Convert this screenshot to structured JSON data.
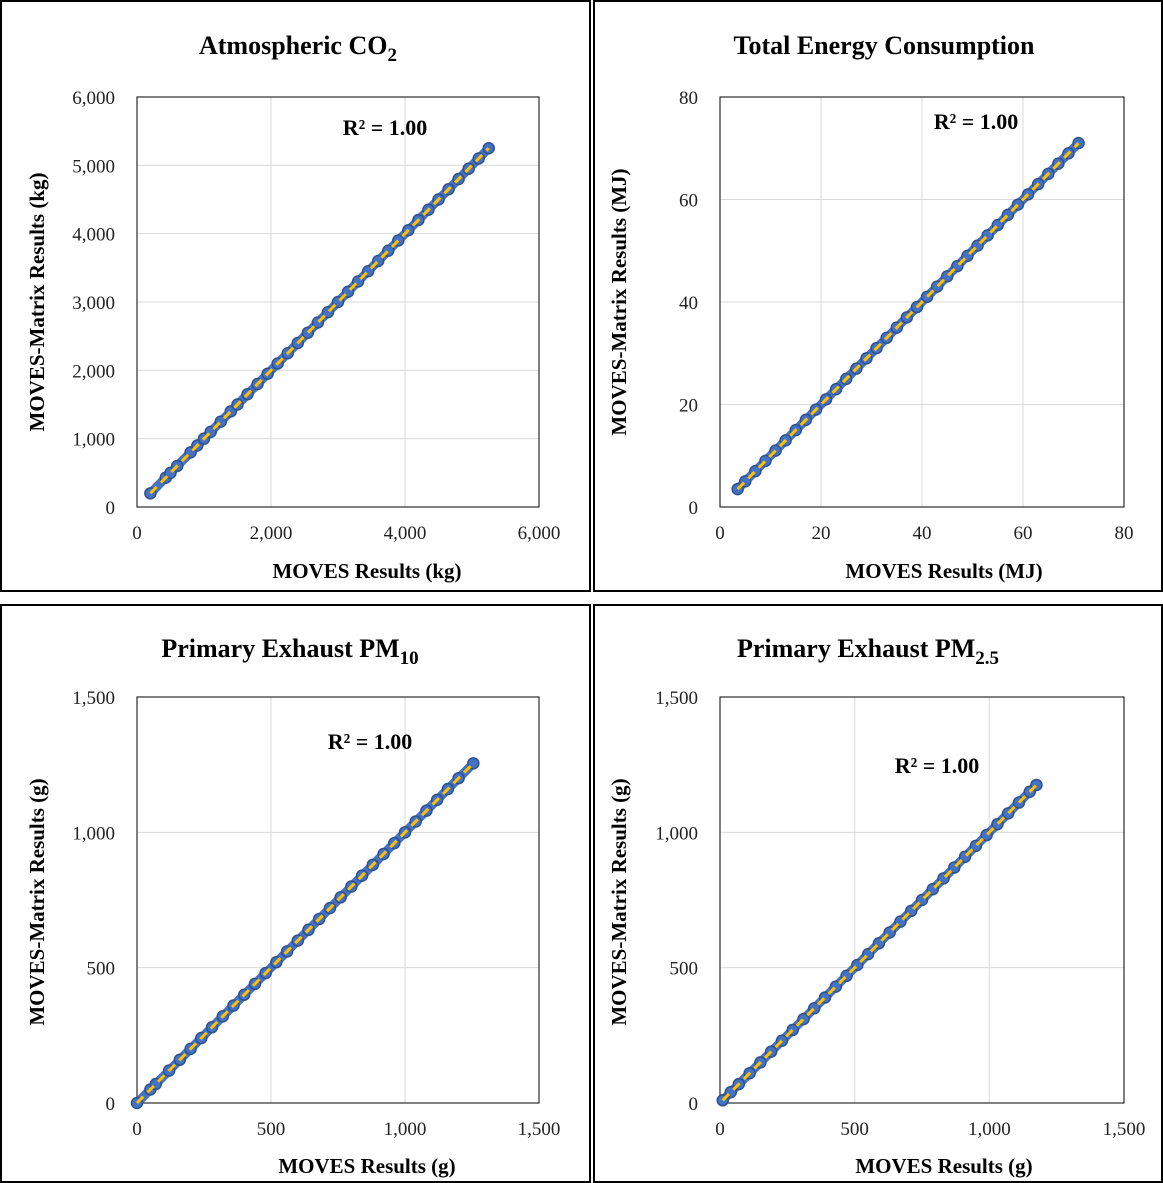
{
  "chart_data": [
    {
      "type": "scatter",
      "title": "Atmospheric CO",
      "title_sub": "2",
      "xlabel": "MOVES  Results (kg)",
      "ylabel": "MOVES-Matrix  Results (kg)",
      "xlim": [
        0,
        6000
      ],
      "ylim": [
        0,
        6000
      ],
      "xticks": [
        0,
        2000,
        4000,
        6000
      ],
      "xtick_labels": [
        "0",
        "2,000",
        "4,000",
        "6,000"
      ],
      "yticks": [
        0,
        1000,
        2000,
        3000,
        4000,
        5000,
        6000
      ],
      "ytick_labels": [
        "0",
        "1,000",
        "2,000",
        "3,000",
        "4,000",
        "5,000",
        "6,000"
      ],
      "annotation": "R² = 1.00",
      "grid": true,
      "x_range_points": [
        200,
        5250
      ],
      "points": [
        [
          200,
          200
        ],
        [
          430,
          430
        ],
        [
          500,
          500
        ],
        [
          600,
          600
        ],
        [
          800,
          800
        ],
        [
          900,
          900
        ],
        [
          1000,
          1000
        ],
        [
          1100,
          1100
        ],
        [
          1250,
          1250
        ],
        [
          1400,
          1400
        ],
        [
          1500,
          1500
        ],
        [
          1650,
          1650
        ],
        [
          1800,
          1800
        ],
        [
          1950,
          1950
        ],
        [
          2100,
          2100
        ],
        [
          2250,
          2250
        ],
        [
          2400,
          2400
        ],
        [
          2550,
          2550
        ],
        [
          2700,
          2700
        ],
        [
          2850,
          2850
        ],
        [
          3000,
          3000
        ],
        [
          3150,
          3150
        ],
        [
          3300,
          3300
        ],
        [
          3450,
          3450
        ],
        [
          3600,
          3600
        ],
        [
          3750,
          3750
        ],
        [
          3900,
          3900
        ],
        [
          4050,
          4050
        ],
        [
          4200,
          4200
        ],
        [
          4350,
          4350
        ],
        [
          4500,
          4500
        ],
        [
          4650,
          4650
        ],
        [
          4800,
          4800
        ],
        [
          4950,
          4950
        ],
        [
          5100,
          5100
        ],
        [
          5250,
          5250
        ]
      ],
      "trendline": [
        [
          200,
          200
        ],
        [
          5250,
          5250
        ]
      ],
      "colors": {
        "marker_fill": "#4472c4",
        "marker_edge": "#2f528f",
        "trendline": "#ffc000",
        "grid": "#d9d9d9"
      }
    },
    {
      "type": "scatter",
      "title": "Total Energy Consumption",
      "title_sub": "",
      "xlabel": "MOVES  Results (MJ)",
      "ylabel": "MOVES-Matrix  Results (MJ)",
      "xlim": [
        0,
        80
      ],
      "ylim": [
        0,
        80
      ],
      "xticks": [
        0,
        20,
        40,
        60,
        80
      ],
      "xtick_labels": [
        "0",
        "20",
        "40",
        "60",
        "80"
      ],
      "yticks": [
        0,
        20,
        40,
        60,
        80
      ],
      "ytick_labels": [
        "0",
        "20",
        "40",
        "60",
        "80"
      ],
      "annotation": "R² = 1.00",
      "grid": true,
      "points": [
        [
          3.5,
          3.5
        ],
        [
          5,
          5
        ],
        [
          7,
          7
        ],
        [
          9,
          9
        ],
        [
          11,
          11
        ],
        [
          13,
          13
        ],
        [
          15,
          15
        ],
        [
          17,
          17
        ],
        [
          19,
          19
        ],
        [
          21,
          21
        ],
        [
          23,
          23
        ],
        [
          25,
          25
        ],
        [
          27,
          27
        ],
        [
          29,
          29
        ],
        [
          31,
          31
        ],
        [
          33,
          33
        ],
        [
          35,
          35
        ],
        [
          37,
          37
        ],
        [
          39,
          39
        ],
        [
          41,
          41
        ],
        [
          43,
          43
        ],
        [
          45,
          45
        ],
        [
          47,
          47
        ],
        [
          49,
          49
        ],
        [
          51,
          51
        ],
        [
          53,
          53
        ],
        [
          55,
          55
        ],
        [
          57,
          57
        ],
        [
          59,
          59
        ],
        [
          61,
          61
        ],
        [
          63,
          63
        ],
        [
          65,
          65
        ],
        [
          67,
          67
        ],
        [
          69,
          69
        ],
        [
          71,
          71
        ]
      ],
      "trendline": [
        [
          3.5,
          3.5
        ],
        [
          71,
          71
        ]
      ],
      "colors": {
        "marker_fill": "#4472c4",
        "marker_edge": "#2f528f",
        "trendline": "#ffc000",
        "grid": "#d9d9d9"
      }
    },
    {
      "type": "scatter",
      "title": "Primary  Exhaust PM",
      "title_sub": "10",
      "xlabel": "MOVES  Results (g)",
      "ylabel": "MOVES-Matrix  Results (g)",
      "xlim": [
        0,
        1500
      ],
      "ylim": [
        0,
        1500
      ],
      "xticks": [
        0,
        500,
        1000,
        1500
      ],
      "xtick_labels": [
        "0",
        "500",
        "1,000",
        "1,500"
      ],
      "yticks": [
        0,
        500,
        1000,
        1500
      ],
      "ytick_labels": [
        "0",
        "500",
        "1,000",
        "1,500"
      ],
      "annotation": "R² = 1.00",
      "grid": true,
      "points": [
        [
          0,
          0
        ],
        [
          50,
          50
        ],
        [
          70,
          70
        ],
        [
          120,
          120
        ],
        [
          160,
          160
        ],
        [
          200,
          200
        ],
        [
          240,
          240
        ],
        [
          280,
          280
        ],
        [
          320,
          320
        ],
        [
          360,
          360
        ],
        [
          400,
          400
        ],
        [
          440,
          440
        ],
        [
          480,
          480
        ],
        [
          520,
          520
        ],
        [
          560,
          560
        ],
        [
          600,
          600
        ],
        [
          640,
          640
        ],
        [
          680,
          680
        ],
        [
          720,
          720
        ],
        [
          760,
          760
        ],
        [
          800,
          800
        ],
        [
          840,
          840
        ],
        [
          880,
          880
        ],
        [
          920,
          920
        ],
        [
          960,
          960
        ],
        [
          1000,
          1000
        ],
        [
          1040,
          1040
        ],
        [
          1080,
          1080
        ],
        [
          1120,
          1120
        ],
        [
          1160,
          1160
        ],
        [
          1200,
          1200
        ],
        [
          1255,
          1255
        ]
      ],
      "trendline": [
        [
          0,
          0
        ],
        [
          1255,
          1255
        ]
      ],
      "colors": {
        "marker_fill": "#4472c4",
        "marker_edge": "#2f528f",
        "trendline": "#ffc000",
        "grid": "#d9d9d9"
      }
    },
    {
      "type": "scatter",
      "title": "Primary  Exhaust PM",
      "title_sub": "2.5",
      "xlabel": "MOVES  Results (g)",
      "ylabel": "MOVES-Matrix  Results (g)",
      "xlim": [
        0,
        1500
      ],
      "ylim": [
        0,
        1500
      ],
      "xticks": [
        0,
        500,
        1000,
        1500
      ],
      "xtick_labels": [
        "0",
        "500",
        "1,000",
        "1,500"
      ],
      "yticks": [
        0,
        500,
        1000,
        1500
      ],
      "ytick_labels": [
        "0",
        "500",
        "1,000",
        "1,500"
      ],
      "annotation": "R² = 1.00",
      "grid": true,
      "points": [
        [
          10,
          10
        ],
        [
          40,
          40
        ],
        [
          70,
          70
        ],
        [
          110,
          110
        ],
        [
          150,
          150
        ],
        [
          190,
          190
        ],
        [
          230,
          230
        ],
        [
          270,
          270
        ],
        [
          310,
          310
        ],
        [
          350,
          350
        ],
        [
          390,
          390
        ],
        [
          430,
          430
        ],
        [
          470,
          470
        ],
        [
          510,
          510
        ],
        [
          550,
          550
        ],
        [
          590,
          590
        ],
        [
          630,
          630
        ],
        [
          670,
          670
        ],
        [
          710,
          710
        ],
        [
          750,
          750
        ],
        [
          790,
          790
        ],
        [
          830,
          830
        ],
        [
          870,
          870
        ],
        [
          910,
          910
        ],
        [
          950,
          950
        ],
        [
          990,
          990
        ],
        [
          1030,
          1030
        ],
        [
          1070,
          1070
        ],
        [
          1110,
          1110
        ],
        [
          1150,
          1150
        ],
        [
          1175,
          1175
        ]
      ],
      "trendline": [
        [
          10,
          10
        ],
        [
          1175,
          1175
        ]
      ],
      "colors": {
        "marker_fill": "#4472c4",
        "marker_edge": "#2f528f",
        "trendline": "#ffc000",
        "grid": "#d9d9d9"
      }
    }
  ]
}
